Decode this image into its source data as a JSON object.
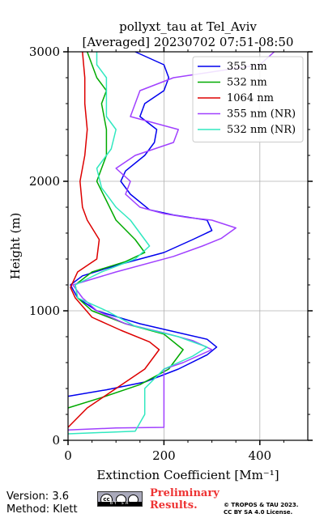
{
  "chart_data": {
    "type": "line",
    "title": "pollyxt_tau at Tel_Aviv",
    "subtitle": "[Averaged] 20230702 07:51-08:50",
    "xlabel": "Extinction Coefficient [Mm⁻¹]",
    "ylabel": "Height (m)",
    "xlim": [
      0,
      500
    ],
    "ylim": [
      0,
      3000
    ],
    "xticks": [
      "0",
      "200",
      "400"
    ],
    "yticks": [
      "0",
      "1000",
      "2000",
      "3000"
    ],
    "grid": true,
    "legend_position": "top-right",
    "series": [
      {
        "name": "355 nm",
        "color": "#0000ee",
        "points": [
          [
            0,
            340
          ],
          [
            80,
            390
          ],
          [
            160,
            450
          ],
          [
            230,
            550
          ],
          [
            290,
            660
          ],
          [
            310,
            720
          ],
          [
            290,
            780
          ],
          [
            220,
            840
          ],
          [
            150,
            900
          ],
          [
            60,
            1000
          ],
          [
            20,
            1100
          ],
          [
            5,
            1200
          ],
          [
            30,
            1270
          ],
          [
            100,
            1350
          ],
          [
            200,
            1450
          ],
          [
            260,
            1550
          ],
          [
            300,
            1620
          ],
          [
            290,
            1700
          ],
          [
            220,
            1740
          ],
          [
            170,
            1780
          ],
          [
            130,
            1900
          ],
          [
            110,
            2000
          ],
          [
            120,
            2080
          ],
          [
            160,
            2200
          ],
          [
            180,
            2300
          ],
          [
            185,
            2400
          ],
          [
            150,
            2500
          ],
          [
            160,
            2600
          ],
          [
            200,
            2700
          ],
          [
            210,
            2800
          ],
          [
            200,
            2900
          ],
          [
            140,
            3000
          ]
        ]
      },
      {
        "name": "532 nm",
        "color": "#00aa00",
        "points": [
          [
            0,
            250
          ],
          [
            70,
            330
          ],
          [
            150,
            430
          ],
          [
            210,
            550
          ],
          [
            240,
            700
          ],
          [
            200,
            820
          ],
          [
            120,
            900
          ],
          [
            50,
            1000
          ],
          [
            20,
            1100
          ],
          [
            15,
            1200
          ],
          [
            50,
            1300
          ],
          [
            120,
            1380
          ],
          [
            160,
            1450
          ],
          [
            140,
            1550
          ],
          [
            100,
            1700
          ],
          [
            80,
            1850
          ],
          [
            60,
            2000
          ],
          [
            70,
            2100
          ],
          [
            80,
            2200
          ],
          [
            80,
            2300
          ],
          [
            80,
            2400
          ],
          [
            70,
            2600
          ],
          [
            80,
            2700
          ],
          [
            60,
            2800
          ],
          [
            50,
            2900
          ],
          [
            40,
            3000
          ]
        ]
      },
      {
        "name": "1064 nm",
        "color": "#dd0000",
        "points": [
          [
            0,
            100
          ],
          [
            40,
            250
          ],
          [
            100,
            400
          ],
          [
            160,
            550
          ],
          [
            190,
            700
          ],
          [
            170,
            760
          ],
          [
            110,
            850
          ],
          [
            50,
            950
          ],
          [
            15,
            1100
          ],
          [
            5,
            1180
          ],
          [
            20,
            1300
          ],
          [
            60,
            1400
          ],
          [
            65,
            1550
          ],
          [
            40,
            1700
          ],
          [
            30,
            1800
          ],
          [
            25,
            2000
          ],
          [
            35,
            2200
          ],
          [
            40,
            2400
          ],
          [
            35,
            2600
          ],
          [
            35,
            2800
          ],
          [
            30,
            3000
          ]
        ]
      },
      {
        "name": "355 nm (NR)",
        "color": "#a040ff",
        "points": [
          [
            0,
            80
          ],
          [
            100,
            95
          ],
          [
            200,
            100
          ],
          [
            200,
            400
          ],
          [
            200,
            550
          ],
          [
            240,
            600
          ],
          [
            300,
            700
          ],
          [
            260,
            770
          ],
          [
            200,
            830
          ],
          [
            120,
            900
          ],
          [
            60,
            1000
          ],
          [
            30,
            1100
          ],
          [
            10,
            1200
          ],
          [
            100,
            1300
          ],
          [
            220,
            1420
          ],
          [
            280,
            1500
          ],
          [
            320,
            1560
          ],
          [
            350,
            1640
          ],
          [
            300,
            1700
          ],
          [
            250,
            1720
          ],
          [
            200,
            1750
          ],
          [
            150,
            1800
          ],
          [
            120,
            1900
          ],
          [
            130,
            2000
          ],
          [
            100,
            2100
          ],
          [
            140,
            2200
          ],
          [
            220,
            2300
          ],
          [
            230,
            2400
          ],
          [
            130,
            2500
          ],
          [
            150,
            2700
          ],
          [
            220,
            2800
          ],
          [
            400,
            2900
          ],
          [
            430,
            3000
          ]
        ]
      },
      {
        "name": "532 nm (NR)",
        "color": "#30e8c0",
        "points": [
          [
            0,
            50
          ],
          [
            140,
            70
          ],
          [
            160,
            200
          ],
          [
            160,
            400
          ],
          [
            200,
            550
          ],
          [
            260,
            650
          ],
          [
            290,
            720
          ],
          [
            230,
            800
          ],
          [
            140,
            880
          ],
          [
            80,
            1000
          ],
          [
            20,
            1100
          ],
          [
            15,
            1200
          ],
          [
            70,
            1300
          ],
          [
            140,
            1400
          ],
          [
            170,
            1500
          ],
          [
            150,
            1600
          ],
          [
            130,
            1700
          ],
          [
            100,
            1800
          ],
          [
            70,
            1950
          ],
          [
            60,
            2100
          ],
          [
            90,
            2250
          ],
          [
            100,
            2400
          ],
          [
            80,
            2500
          ],
          [
            80,
            2650
          ],
          [
            80,
            2800
          ],
          [
            60,
            2900
          ],
          [
            60,
            3000
          ]
        ]
      }
    ]
  },
  "footer": {
    "version": "Version: 3.6",
    "method": "Method: Klett",
    "preliminary_line1": "Preliminary",
    "preliminary_line2": "Results.",
    "license_line1": "© TROPOS & TAU 2023.",
    "license_line2": "CC BY SA 4.0 License."
  }
}
